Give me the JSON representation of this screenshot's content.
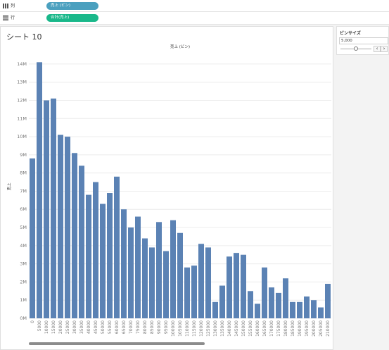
{
  "shelves": {
    "columns": {
      "label": "列",
      "pill": "売上 (ビン)"
    },
    "rows": {
      "label": "行",
      "pill": "合計(売上)"
    }
  },
  "sheet": {
    "title": "シート 10"
  },
  "parameter": {
    "title": "ビンサイズ",
    "value": "5,000",
    "slider_fraction": 0.5,
    "dec_label": "‹",
    "inc_label": "›"
  },
  "colors": {
    "bar": "#5b82b4",
    "grid": "#ececec",
    "axis_text": "#777777"
  },
  "chart_data": {
    "type": "bar",
    "title": "売上 (ビン)",
    "xlabel": "",
    "ylabel": "売上",
    "ylim": [
      0,
      14500000
    ],
    "yticks": [
      0,
      1000000,
      2000000,
      3000000,
      4000000,
      5000000,
      6000000,
      7000000,
      8000000,
      9000000,
      10000000,
      11000000,
      12000000,
      13000000,
      14000000
    ],
    "ytick_labels": [
      "0M",
      "1M",
      "2M",
      "3M",
      "4M",
      "5M",
      "6M",
      "7M",
      "8M",
      "9M",
      "10M",
      "11M",
      "12M",
      "13M",
      "14M"
    ],
    "grid": true,
    "categories": [
      "0",
      "5000",
      "10000",
      "15000",
      "20000",
      "25000",
      "30000",
      "35000",
      "40000",
      "45000",
      "50000",
      "55000",
      "60000",
      "65000",
      "70000",
      "75000",
      "80000",
      "85000",
      "90000",
      "95000",
      "100000",
      "105000",
      "110000",
      "115000",
      "120000",
      "125000",
      "130000",
      "135000",
      "140000",
      "145000",
      "150000",
      "155000",
      "160000",
      "165000",
      "170000",
      "175000",
      "180000",
      "185000",
      "190000",
      "195000",
      "200000",
      "205000",
      "210000"
    ],
    "values": [
      8800000,
      14100000,
      12000000,
      12100000,
      10100000,
      10000000,
      9100000,
      8400000,
      6800000,
      7500000,
      6300000,
      6900000,
      7800000,
      6000000,
      5000000,
      5600000,
      4400000,
      3900000,
      5300000,
      3700000,
      5400000,
      4700000,
      2800000,
      2900000,
      4100000,
      3900000,
      900000,
      1800000,
      3400000,
      3600000,
      3500000,
      1500000,
      800000,
      2800000,
      1700000,
      1400000,
      2200000,
      900000,
      900000,
      1200000,
      1000000,
      600000,
      1900000
    ]
  }
}
